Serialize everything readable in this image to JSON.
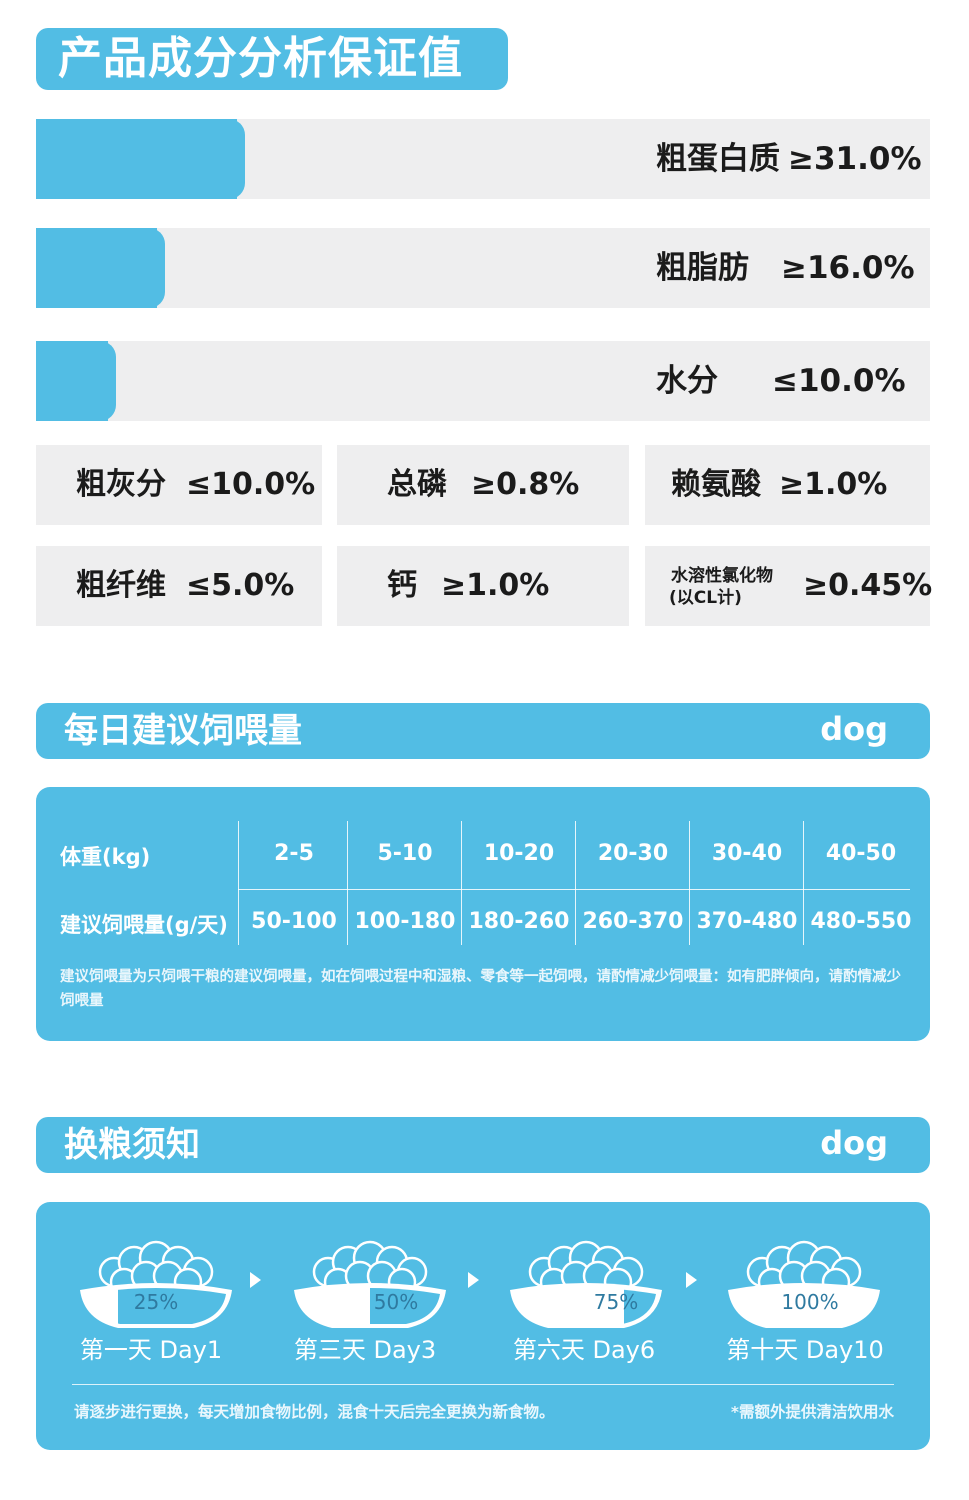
{
  "title": "产品成分分析保证值",
  "bars": [
    {
      "label": "粗蛋白质",
      "value": "≥31.0%",
      "fill": 0.225
    },
    {
      "label": "粗脂肪",
      "value": "≥16.0%",
      "fill": 0.135
    },
    {
      "label": "水分",
      "value": "≤10.0%",
      "fill": 0.08
    }
  ],
  "grid": [
    {
      "label": "粗灰分",
      "value": "≤10.0%"
    },
    {
      "label": "总磷",
      "value": "≥0.8%"
    },
    {
      "label": "赖氨酸",
      "value": "≥1.0%"
    },
    {
      "label": "粗纤维",
      "value": "≤5.0%"
    },
    {
      "label": "钙",
      "value": "≥1.0%"
    },
    {
      "label_line1": "水溶性氯化物",
      "label_line2": "(以CL计)",
      "value": "≥0.45%"
    }
  ],
  "feeding": {
    "title": "每日建议饲喂量",
    "tag": "dog",
    "row1_header": "体重(kg)",
    "row2_header": "建议饲喂量(g/天)",
    "weights": [
      "2-5",
      "5-10",
      "10-20",
      "20-30",
      "30-40",
      "40-50"
    ],
    "amounts": [
      "50-100",
      "100-180",
      "180-260",
      "260-370",
      "370-480",
      "480-550"
    ],
    "note": "建议饲喂量为只饲喂干粮的建议饲喂量，如在饲喂过程中和湿粮、零食等一起饲喂，请酌情减少饲喂量：如有肥胖倾向，请酌情减少饲喂量"
  },
  "switching": {
    "title": "换粮须知",
    "tag": "dog",
    "steps": [
      {
        "percent": "25%",
        "caption": "第一天 Day1",
        "ratio": 0.25
      },
      {
        "percent": "50%",
        "caption": "第三天 Day3",
        "ratio": 0.5
      },
      {
        "percent": "75%",
        "caption": "第六天 Day6",
        "ratio": 0.75
      },
      {
        "percent": "100%",
        "caption": "第十天 Day10",
        "ratio": 1.0
      }
    ],
    "note_left": "请逐步进行更换，每天增加食物比例，混食十天后完全更换为新食物。",
    "note_right": "*需额外提供清洁饮用水"
  },
  "colors": {
    "accent": "#52bde4",
    "panel_gray": "#eeeeef",
    "text": "#1b1b1b"
  }
}
